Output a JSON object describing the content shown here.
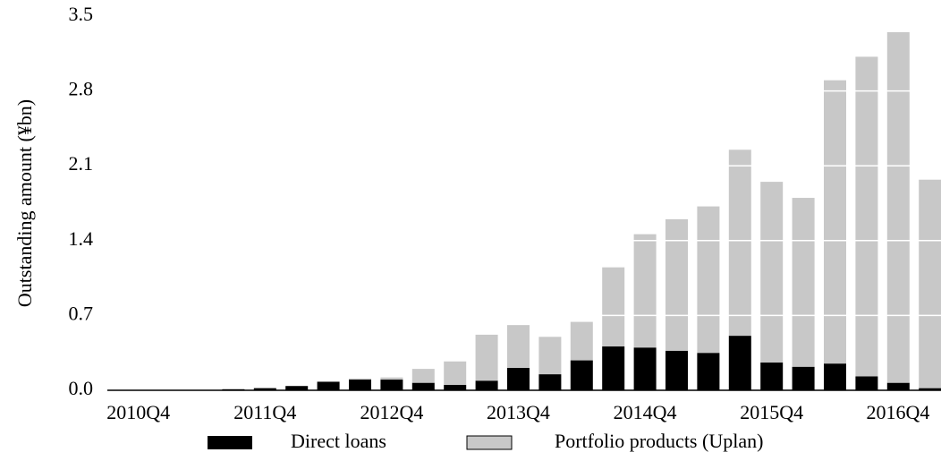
{
  "chart_data": {
    "type": "stacked_bar",
    "ylabel": "Outstanding amount (¥bn)",
    "categories": [
      "2010Q4",
      null,
      null,
      null,
      "2011Q4",
      null,
      null,
      null,
      "2012Q4",
      null,
      null,
      null,
      "2013Q4",
      null,
      null,
      null,
      "2014Q4",
      null,
      null,
      null,
      "2015Q4",
      null,
      null,
      null,
      "2016Q4",
      null
    ],
    "series": [
      {
        "name": "Direct loans",
        "color": "#000000",
        "values": [
          0,
          0,
          0,
          0.01,
          0.02,
          0.04,
          0.08,
          0.1,
          0.1,
          0.07,
          0.05,
          0.09,
          0.21,
          0.15,
          0.28,
          0.41,
          0.4,
          0.37,
          0.35,
          0.51,
          0.26,
          0.22,
          0.25,
          0.13,
          0.07,
          0.02
        ]
      },
      {
        "name": "Portfolio products (Uplan)",
        "color": "#c8c8c8",
        "values": [
          0,
          0,
          0,
          0,
          0,
          0,
          0,
          0.01,
          0.02,
          0.13,
          0.22,
          0.43,
          0.4,
          0.35,
          0.36,
          0.74,
          1.06,
          1.23,
          1.37,
          1.74,
          1.69,
          1.58,
          2.65,
          2.99,
          3.28,
          1.95
        ]
      }
    ],
    "ylim": [
      0,
      3.5
    ],
    "yticks": [
      {
        "value": 0,
        "label": "0.0"
      },
      0.7,
      1.4,
      2.1,
      2.8,
      3.5
    ],
    "grid": true
  }
}
